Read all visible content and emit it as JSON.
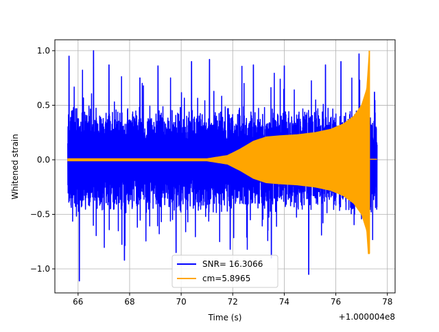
{
  "chart_data": {
    "type": "line",
    "title": "",
    "xlabel": "Time (s)",
    "ylabel": "Whitened strain",
    "x_offset_label": "+1.000004e8",
    "xlim": [
      65.1,
      78.3
    ],
    "ylim": [
      -1.22,
      1.1
    ],
    "x_ticks": [
      66,
      68,
      70,
      72,
      74,
      76,
      78
    ],
    "x_tick_labels": [
      "66",
      "68",
      "70",
      "72",
      "74",
      "76",
      "78"
    ],
    "y_ticks": [
      1.0,
      0.5,
      0.0,
      -0.5,
      -1.0
    ],
    "y_tick_labels": [
      "1.0",
      "0.5",
      "0.0",
      "−0.5",
      "−1.0"
    ],
    "grid": true,
    "legend_position": "lower-center",
    "series": [
      {
        "name": "SNR= 16.3066",
        "color": "#0000ff",
        "description_points": {
          "x_range": [
            65.6,
            77.6
          ],
          "typical_envelope": 0.5,
          "spikes": [
            [
              65.65,
              0.95
            ],
            [
              66.05,
              -1.11
            ],
            [
              66.6,
              1.0
            ],
            [
              67.2,
              0.87
            ],
            [
              67.8,
              -0.92
            ],
            [
              68.4,
              0.75
            ],
            [
              69.1,
              0.86
            ],
            [
              69.8,
              -0.85
            ],
            [
              70.4,
              0.9
            ],
            [
              71.1,
              0.92
            ],
            [
              71.9,
              -0.82
            ],
            [
              72.8,
              0.87
            ],
            [
              73.5,
              -0.9
            ],
            [
              74.0,
              0.86
            ],
            [
              74.95,
              -1.05
            ],
            [
              75.6,
              0.87
            ],
            [
              76.2,
              0.9
            ],
            [
              76.9,
              0.97
            ],
            [
              77.5,
              0.62
            ]
          ]
        }
      },
      {
        "name": "cm=5.8965",
        "color": "#ffa500",
        "envelope": [
          [
            65.6,
            0.01
          ],
          [
            71.0,
            0.01
          ],
          [
            71.8,
            0.04
          ],
          [
            72.3,
            0.1
          ],
          [
            72.8,
            0.17
          ],
          [
            73.3,
            0.21
          ],
          [
            73.8,
            0.22
          ],
          [
            74.5,
            0.23
          ],
          [
            75.2,
            0.25
          ],
          [
            75.8,
            0.28
          ],
          [
            76.3,
            0.33
          ],
          [
            76.7,
            0.4
          ],
          [
            77.0,
            0.5
          ],
          [
            77.2,
            0.65
          ],
          [
            77.3,
            1.0
          ],
          [
            77.33,
            0.01
          ],
          [
            77.6,
            0.01
          ]
        ],
        "peak_low": -0.86
      }
    ]
  }
}
